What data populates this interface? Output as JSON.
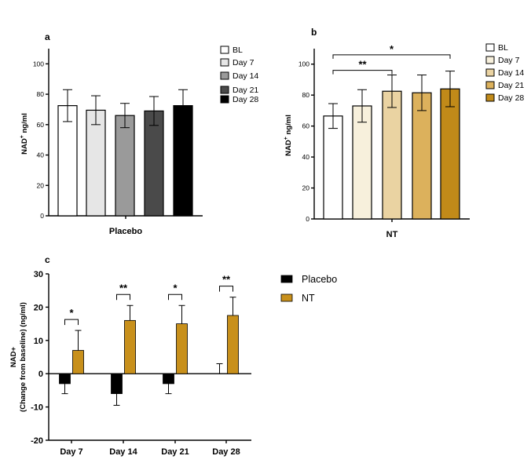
{
  "chart_data": [
    {
      "panel": "a",
      "type": "bar",
      "categories": [
        "BL",
        "Day 7",
        "Day 14",
        "Day 21",
        "Day 28"
      ],
      "values": [
        72.5,
        69.5,
        66,
        69,
        72.5
      ],
      "errors": [
        10.5,
        9.5,
        8,
        9.5,
        10.5
      ],
      "colors": [
        "#ffffff",
        "#e6e6e6",
        "#9a9a9a",
        "#4a4a4a",
        "#000000"
      ],
      "ylabel_main": "NAD",
      "ylabel_sup": "+",
      "ylabel_rest": " ng/ml",
      "xlabel": "Placebo",
      "ylim": [
        0,
        110
      ],
      "yticks": [
        0,
        20,
        40,
        60,
        80,
        100
      ],
      "legend": [
        "BL",
        "Day 7",
        "Day 14",
        "Day 21",
        "Day 28"
      ],
      "legend_position": "right"
    },
    {
      "panel": "b",
      "type": "bar",
      "categories": [
        "BL",
        "Day 7",
        "Day 14",
        "Day 21",
        "Day 28"
      ],
      "values": [
        66.5,
        73,
        82.5,
        81.5,
        84
      ],
      "errors": [
        8,
        10.5,
        10.5,
        11.5,
        11.5
      ],
      "colors": [
        "#ffffff",
        "#f7f0dc",
        "#ead3a2",
        "#dcb15c",
        "#c18a19"
      ],
      "ylabel_main": "NAD",
      "ylabel_sup": "+",
      "ylabel_rest": " ng/ml",
      "xlabel": "NT",
      "ylim": [
        0,
        110
      ],
      "yticks": [
        0,
        20,
        40,
        60,
        80,
        100
      ],
      "legend": [
        "BL",
        "Day 7",
        "Day 14",
        "Day 21",
        "Day 28"
      ],
      "legend_position": "right",
      "significance": [
        {
          "from": "BL",
          "to": "Day 14",
          "label": "**",
          "y": 96
        },
        {
          "from": "BL",
          "to": "Day 28",
          "label": "*",
          "y": 106
        }
      ]
    },
    {
      "panel": "c",
      "type": "bar",
      "categories": [
        "Day 7",
        "Day 14",
        "Day 21",
        "Day 28"
      ],
      "series": [
        {
          "name": "Placebo",
          "color": "#000000",
          "values": [
            -3,
            -6,
            -3,
            0
          ],
          "errors": [
            3,
            3.5,
            3,
            3
          ]
        },
        {
          "name": "NT",
          "color": "#c8901b",
          "values": [
            7,
            16,
            15,
            17.5
          ],
          "errors": [
            6,
            4.5,
            5.5,
            5.5
          ]
        }
      ],
      "ylabel_line1": "NAD+",
      "ylabel_line2": "(Change from baseline) (ng/ml)",
      "ylim": [
        -20,
        30
      ],
      "yticks": [
        -20,
        -10,
        0,
        10,
        20,
        30
      ],
      "significance": [
        "*",
        "**",
        "*",
        "**"
      ],
      "legend_position": "right"
    }
  ]
}
